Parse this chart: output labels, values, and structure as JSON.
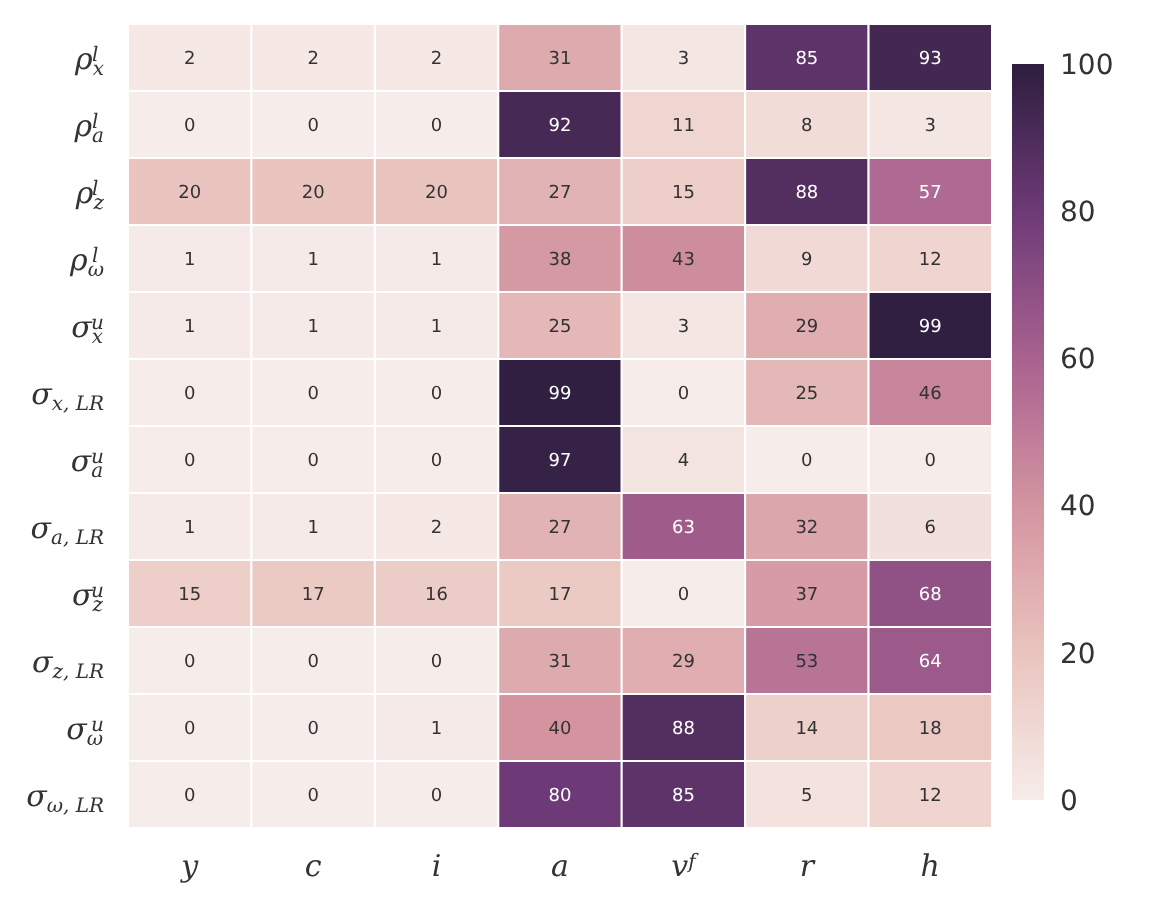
{
  "chart_data": {
    "type": "heatmap",
    "categories": [
      "y",
      "c",
      "i",
      "a",
      "v$^{f}$",
      "r",
      "h"
    ],
    "y_categories": [
      "ρ$_{x}$$^{l}$",
      "ρ$_{a}$$^{l}$",
      "ρ$_{z}$$^{l}$",
      "ρ$_{ω}$$^{l}$",
      "σ$_{x}$$^{u}$",
      "σ$_{x, LR}$",
      "σ$_{a}$$^{u}$",
      "σ$_{a, LR}$",
      "σ$_{z}$$^{u}$",
      "σ$_{z, LR}$",
      "σ$_{ω}$$^{u}$",
      "σ$_{ω, LR}$"
    ],
    "cells": [
      [
        2,
        2,
        2,
        31,
        3,
        85,
        93
      ],
      [
        0,
        0,
        0,
        92,
        11,
        8,
        3
      ],
      [
        20,
        20,
        20,
        27,
        15,
        88,
        57
      ],
      [
        1,
        1,
        1,
        38,
        43,
        9,
        12
      ],
      [
        1,
        1,
        1,
        25,
        3,
        29,
        99
      ],
      [
        0,
        0,
        0,
        99,
        0,
        25,
        46
      ],
      [
        0,
        0,
        0,
        97,
        4,
        0,
        0
      ],
      [
        1,
        1,
        2,
        27,
        63,
        32,
        6
      ],
      [
        15,
        17,
        16,
        17,
        0,
        37,
        68
      ],
      [
        0,
        0,
        0,
        31,
        29,
        53,
        64
      ],
      [
        0,
        0,
        1,
        40,
        88,
        14,
        18
      ],
      [
        0,
        0,
        0,
        80,
        85,
        5,
        12
      ]
    ],
    "data_labels": true,
    "clim": [
      0,
      100
    ],
    "cticks": [
      0,
      20,
      40,
      60,
      80,
      100
    ]
  }
}
